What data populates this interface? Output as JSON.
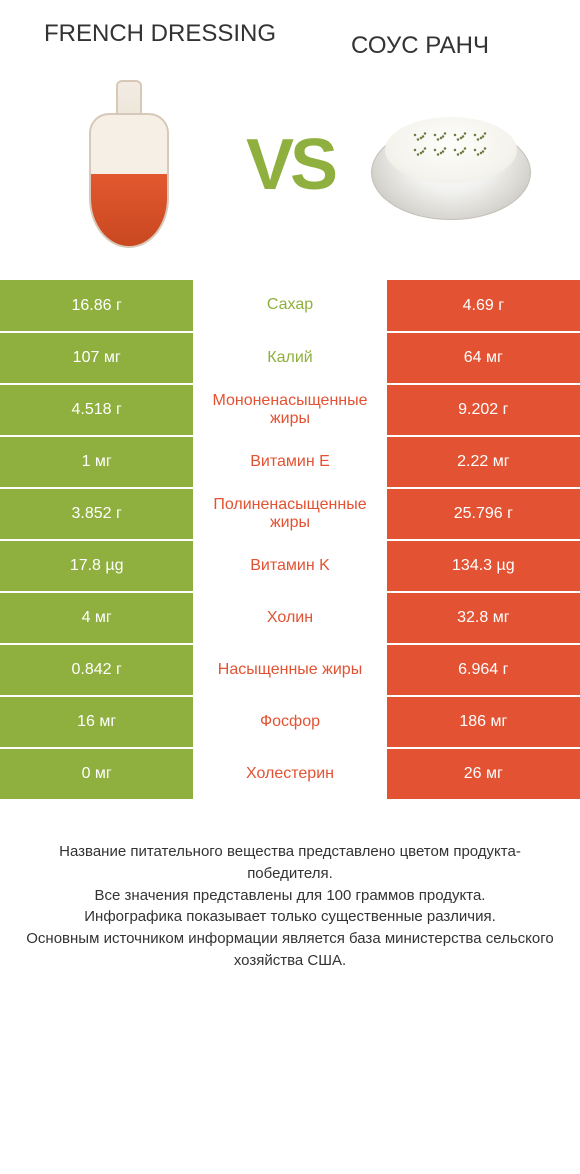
{
  "header": {
    "left_title": "FRENCH DRESSING",
    "right_title": "СОУС РАНЧ",
    "vs": "VS"
  },
  "colors": {
    "green": "#8fb03e",
    "red": "#e35232",
    "bg": "#ffffff",
    "text": "#333333"
  },
  "rows": [
    {
      "left": "16.86 г",
      "label": "Сахар",
      "right": "4.69 г",
      "winner": "left"
    },
    {
      "left": "107 мг",
      "label": "Калий",
      "right": "64 мг",
      "winner": "left"
    },
    {
      "left": "4.518 г",
      "label": "Мононенасыщенные жиры",
      "right": "9.202 г",
      "winner": "right"
    },
    {
      "left": "1 мг",
      "label": "Витамин E",
      "right": "2.22 мг",
      "winner": "right"
    },
    {
      "left": "3.852 г",
      "label": "Полиненасыщенные жиры",
      "right": "25.796 г",
      "winner": "right"
    },
    {
      "left": "17.8 µg",
      "label": "Витамин K",
      "right": "134.3 µg",
      "winner": "right"
    },
    {
      "left": "4 мг",
      "label": "Холин",
      "right": "32.8 мг",
      "winner": "right"
    },
    {
      "left": "0.842 г",
      "label": "Насыщенные жиры",
      "right": "6.964 г",
      "winner": "right"
    },
    {
      "left": "16 мг",
      "label": "Фосфор",
      "right": "186 мг",
      "winner": "right"
    },
    {
      "left": "0 мг",
      "label": "Холестерин",
      "right": "26 мг",
      "winner": "right"
    }
  ],
  "footer": {
    "line1": "Название питательного вещества представлено цветом продукта-победителя.",
    "line2": "Все значения представлены для 100 граммов продукта.",
    "line3": "Инфографика показывает только существенные различия.",
    "line4": "Основным источником информации является база министерства сельского хозяйства США."
  }
}
